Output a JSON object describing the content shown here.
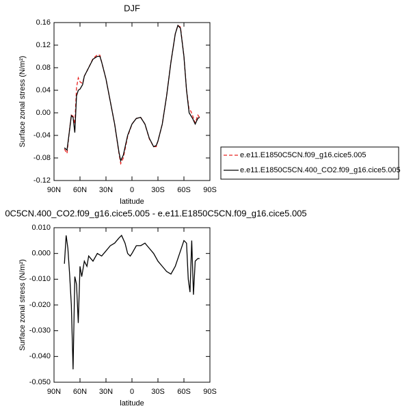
{
  "chart_data": [
    {
      "type": "line",
      "title": "DJF",
      "xlabel": "latitude",
      "ylabel": "Surface zonal stress (N/m²)",
      "xlim": [
        90,
        -90
      ],
      "xticks": [
        {
          "value": 90,
          "label": "90N"
        },
        {
          "value": 60,
          "label": "60N"
        },
        {
          "value": 30,
          "label": "30N"
        },
        0,
        {
          "value": -30,
          "label": "30S"
        },
        {
          "value": -60,
          "label": "60S"
        },
        {
          "value": -90,
          "label": "90S"
        }
      ],
      "ylim": [
        -0.12,
        0.16
      ],
      "yticks": [
        {
          "value": -0.12,
          "label": "-0.12"
        },
        {
          "value": -0.08,
          "label": "-0.08"
        },
        {
          "value": -0.04,
          "label": "-0.04"
        },
        {
          "value": 0,
          "label": "0.00"
        },
        0.04,
        0.08,
        0.12,
        0.16
      ],
      "x": [
        78,
        75,
        72,
        70,
        68,
        66,
        64,
        62,
        60,
        57,
        55,
        50,
        45,
        40,
        37,
        35,
        30,
        25,
        20,
        15,
        13,
        10,
        5,
        0,
        -5,
        -10,
        -15,
        -20,
        -25,
        -28,
        -30,
        -35,
        -40,
        -45,
        -50,
        -53,
        -56,
        -60,
        -63,
        -66,
        -68,
        -70,
        -73,
        -76,
        -78
      ],
      "series": [
        {
          "name": "e.e11.E1850C5CN.f09_g16.cice5.005",
          "color": "#e8201e",
          "line_style": "dashed",
          "values": [
            -0.064,
            -0.072,
            -0.028,
            -0.004,
            -0.006,
            -0.02,
            0.045,
            0.062,
            0.055,
            0.052,
            0.065,
            0.08,
            0.096,
            0.103,
            0.102,
            0.09,
            0.06,
            0.02,
            -0.02,
            -0.072,
            -0.09,
            -0.08,
            -0.042,
            -0.02,
            -0.01,
            -0.008,
            -0.02,
            -0.046,
            -0.06,
            -0.06,
            -0.05,
            -0.02,
            0.03,
            0.09,
            0.14,
            0.155,
            0.152,
            0.1,
            0.04,
            0.005,
            0.003,
            -0.005,
            -0.018,
            -0.004,
            -0.008
          ]
        },
        {
          "name": "e.e11.E1850C5CN.400_CO2.f09_g16.cice5.005",
          "color": "#000000",
          "line_style": "solid",
          "values": [
            -0.062,
            -0.066,
            -0.03,
            -0.005,
            -0.008,
            -0.035,
            0.03,
            0.04,
            0.042,
            0.05,
            0.065,
            0.08,
            0.095,
            0.1,
            0.1,
            0.09,
            0.06,
            0.02,
            -0.02,
            -0.07,
            -0.085,
            -0.075,
            -0.04,
            -0.02,
            -0.01,
            -0.008,
            -0.02,
            -0.045,
            -0.06,
            -0.058,
            -0.05,
            -0.02,
            0.03,
            0.09,
            0.14,
            0.155,
            0.15,
            0.1,
            0.04,
            0.0,
            -0.005,
            -0.01,
            -0.02,
            -0.01,
            -0.008
          ]
        }
      ],
      "legend": "outside-right"
    },
    {
      "type": "line",
      "title": "0C5CN.400_CO2.f09_g16.cice5.005 - e.e11.E1850C5CN.f09_g16.cice5.005",
      "xlabel": "latitude",
      "ylabel": "Surface zonal stress (N/m²)",
      "xlim": [
        90,
        -90
      ],
      "xticks": [
        {
          "value": 90,
          "label": "90N"
        },
        {
          "value": 60,
          "label": "60N"
        },
        {
          "value": 30,
          "label": "30N"
        },
        0,
        {
          "value": -30,
          "label": "30S"
        },
        {
          "value": -60,
          "label": "60S"
        },
        {
          "value": -90,
          "label": "90S"
        }
      ],
      "ylim": [
        -0.05,
        0.01
      ],
      "yticks": [
        {
          "value": -0.05,
          "label": "-0.050"
        },
        {
          "value": -0.04,
          "label": "-0.040"
        },
        {
          "value": -0.03,
          "label": "-0.030"
        },
        {
          "value": -0.02,
          "label": "-0.020"
        },
        {
          "value": -0.01,
          "label": "-0.010"
        },
        {
          "value": 0,
          "label": "0.000"
        },
        {
          "value": 0.01,
          "label": "0.010"
        }
      ],
      "x": [
        78,
        76,
        74,
        72,
        70,
        68,
        66,
        64,
        62,
        60,
        58,
        55,
        52,
        50,
        45,
        40,
        35,
        30,
        25,
        20,
        15,
        12,
        8,
        5,
        2,
        0,
        -5,
        -10,
        -15,
        -20,
        -25,
        -30,
        -35,
        -40,
        -45,
        -50,
        -55,
        -60,
        -63,
        -65,
        -67,
        -69,
        -71,
        -73,
        -76,
        -78
      ],
      "series": [
        {
          "color": "#000000",
          "line_style": "solid",
          "values": [
            -0.004,
            0.007,
            0.002,
            -0.008,
            -0.02,
            -0.045,
            -0.009,
            -0.012,
            -0.027,
            -0.005,
            -0.009,
            -0.003,
            -0.005,
            -0.001,
            -0.003,
            0.0,
            -0.001,
            0.001,
            0.003,
            0.004,
            0.006,
            0.007,
            0.004,
            0.0,
            -0.001,
            0.0,
            0.003,
            0.003,
            0.004,
            0.002,
            0.0,
            -0.003,
            -0.005,
            -0.007,
            -0.008,
            -0.005,
            0.0,
            0.005,
            0.004,
            -0.01,
            -0.015,
            0.005,
            -0.016,
            -0.003,
            -0.002,
            -0.002
          ]
        }
      ]
    }
  ]
}
